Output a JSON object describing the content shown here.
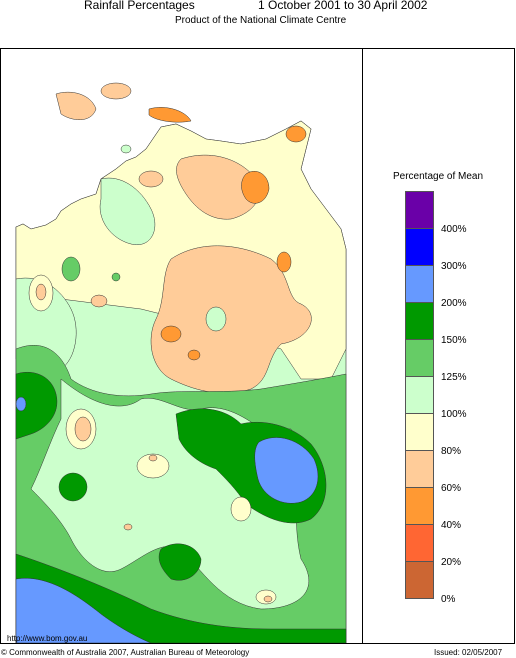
{
  "header": {
    "title": "Rainfall Percentages",
    "period": "1 October 2001 to 30 April 2002",
    "product": "Product of the National Climate Centre"
  },
  "legend": {
    "title": "Percentage of Mean",
    "labels": [
      "400%",
      "300%",
      "200%",
      "150%",
      "125%",
      "100%",
      "80%",
      "60%",
      "40%",
      "20%",
      "0%"
    ],
    "colors": [
      "#6a00a8",
      "#0000ff",
      "#6699ff",
      "#009900",
      "#66cc66",
      "#ccffcc",
      "#ffffcc",
      "#ffcc99",
      "#ff9933",
      "#ff6633",
      "#cc6633"
    ]
  },
  "footer": {
    "url": "http://www.bom.gov.au",
    "copyright": "© Commonwealth of Australia 2007, Australian Bureau of Meteorology",
    "issued": "Issued: 02/05/2007"
  }
}
